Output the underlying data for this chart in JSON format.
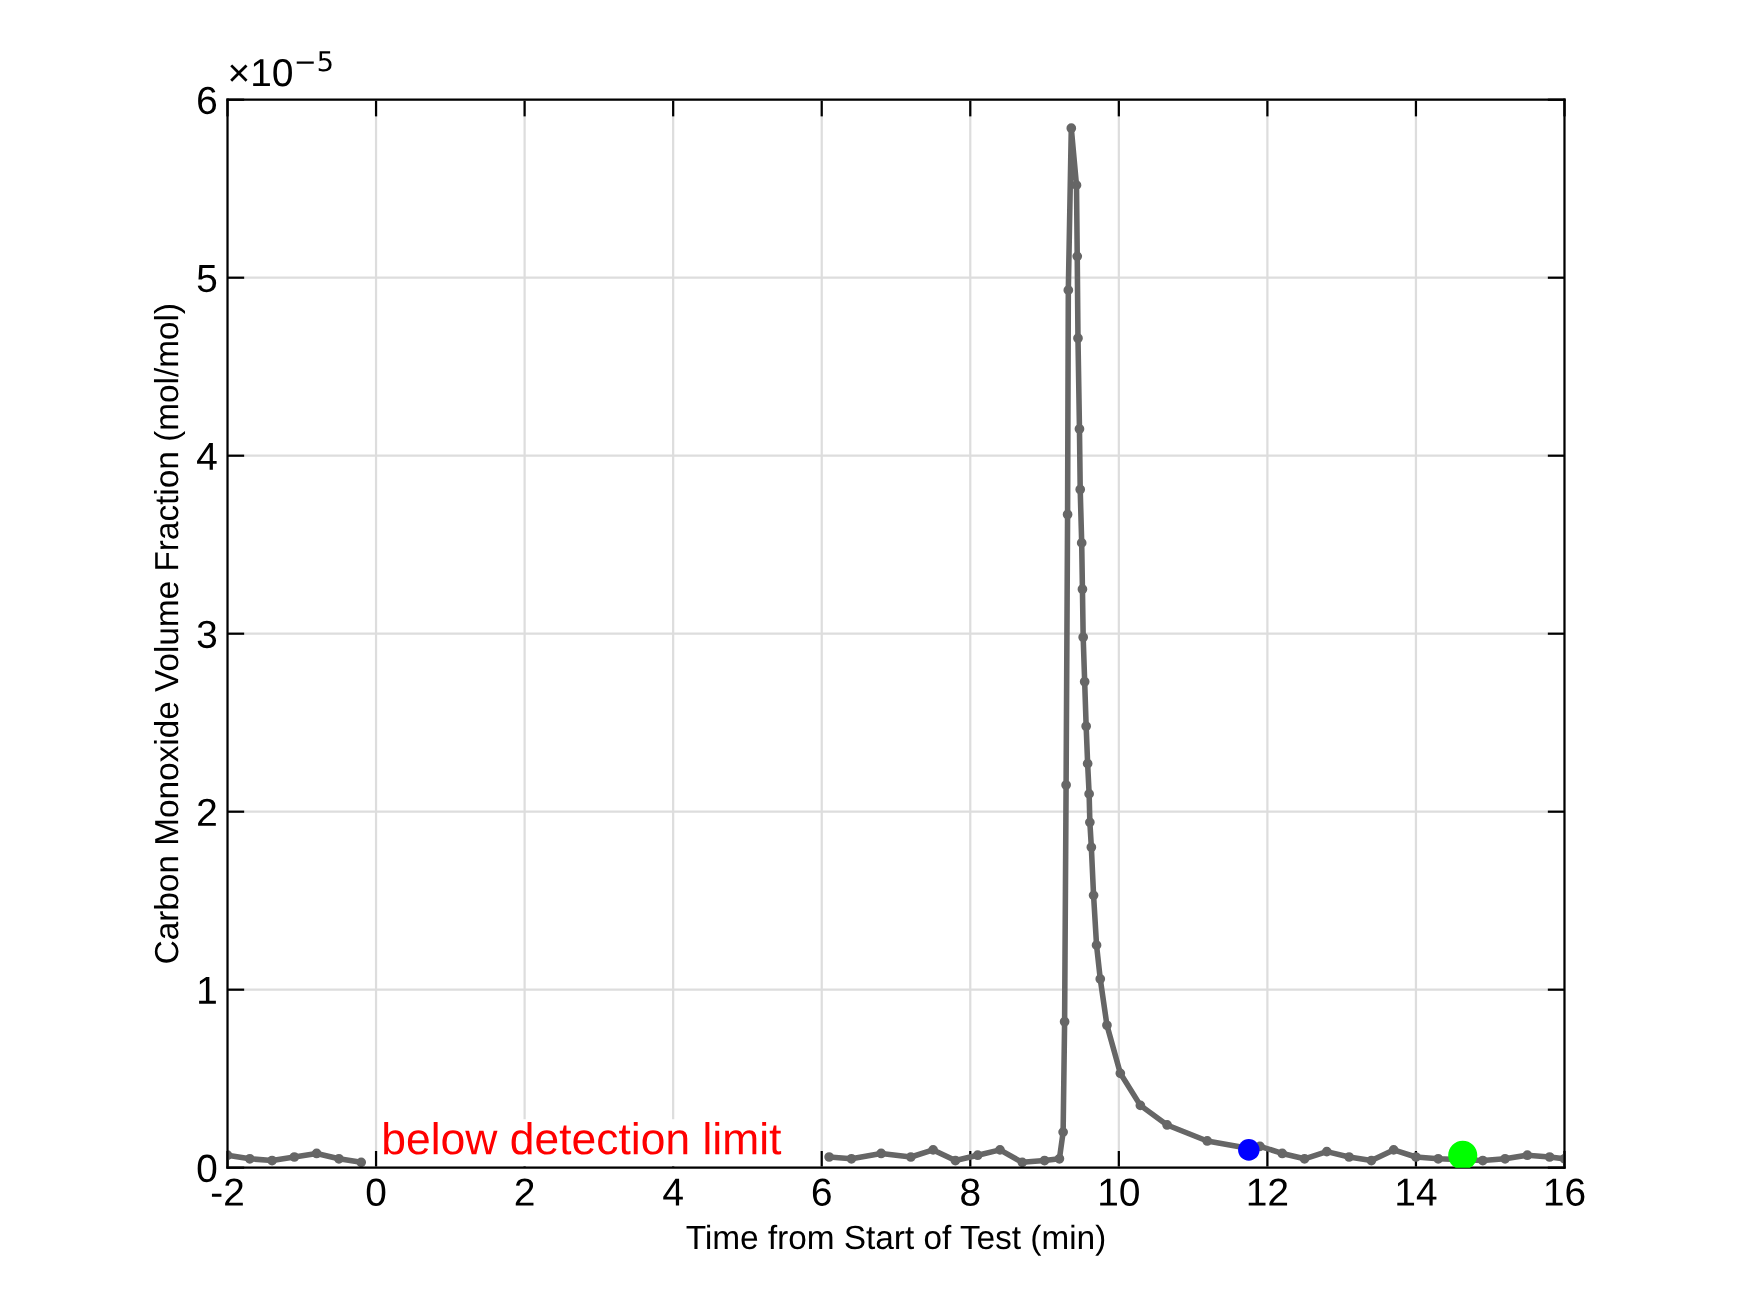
{
  "chart_data": {
    "type": "line",
    "xlabel": "Time from Start of Test (min)",
    "ylabel": "Carbon Monoxide Volume Fraction (mol/mol)",
    "xlim": [
      -2,
      16
    ],
    "xticks": [
      -2,
      0,
      2,
      4,
      6,
      8,
      10,
      12,
      14,
      16
    ],
    "ylim": [
      0,
      6
    ],
    "yticks": [
      0,
      1,
      2,
      3,
      4,
      5,
      6
    ],
    "grid": true,
    "marker": "circle",
    "line_style": "solid",
    "annotations": [
      "×10$^{−5}$",
      "below detection limit"
    ],
    "series": [
      {
        "color": "#666666",
        "x": [
          -2,
          -1.7,
          -1.4,
          -1.1,
          -0.8,
          -0.5,
          -0.2,
          0,
          6,
          6.1,
          6.4,
          6.8,
          7.2,
          7.5,
          7.8,
          8.1,
          8.4,
          8.7,
          9.0,
          9.2,
          9.25,
          9.27,
          9.29,
          9.31,
          9.32,
          9.36,
          9.43,
          9.44,
          9.45,
          9.47,
          9.48,
          9.5,
          9.51,
          9.52,
          9.54,
          9.56,
          9.58,
          9.6,
          9.61,
          9.63,
          9.66,
          9.7,
          9.75,
          9.84,
          10.02,
          10.29,
          10.65,
          11.19,
          11.72,
          11.9,
          12.2,
          12.5,
          12.8,
          13.1,
          13.4,
          13.7,
          14.0,
          14.3,
          14.9,
          15.2,
          15.5,
          15.8,
          16
        ],
        "values": [
          0.07,
          0.05,
          0.04,
          0.06,
          0.08,
          0.05,
          0.03,
          null,
          null,
          0.06,
          0.05,
          0.08,
          0.06,
          0.1,
          0.04,
          0.07,
          0.1,
          0.03,
          0.04,
          0.05,
          0.2,
          0.82,
          2.15,
          3.67,
          4.93,
          5.84,
          5.52,
          5.12,
          4.66,
          4.15,
          3.81,
          3.51,
          3.25,
          2.98,
          2.73,
          2.48,
          2.27,
          2.1,
          1.94,
          1.8,
          1.53,
          1.25,
          1.06,
          0.8,
          0.53,
          0.35,
          0.24,
          0.15,
          0.11,
          0.12,
          0.08,
          0.05,
          0.09,
          0.06,
          0.04,
          0.1,
          0.06,
          0.05,
          0.04,
          0.05,
          0.07,
          0.06,
          0.05
        ]
      },
      {
        "type": "scatter",
        "color": "#0000ff",
        "x": [
          11.75
        ],
        "values": [
          0.1
        ]
      },
      {
        "type": "scatter",
        "color": "#00ff00",
        "x": [
          14.63
        ],
        "values": [
          0.07
        ]
      }
    ]
  }
}
